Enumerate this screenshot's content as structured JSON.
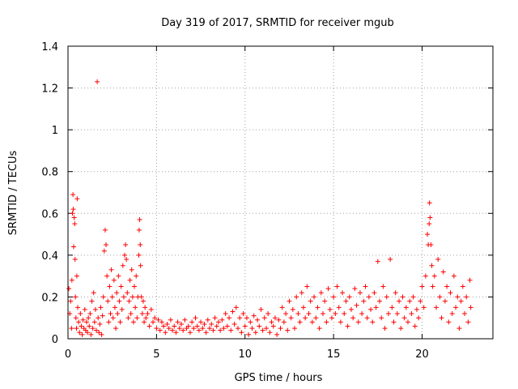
{
  "chart_data": {
    "type": "scatter",
    "title": "Day 319 of 2017, SRMTID for receiver mgub",
    "xlabel": "GPS time / hours",
    "ylabel": "SRMTID / TECUs",
    "xlim": [
      0,
      24
    ],
    "ylim": [
      0,
      1.4
    ],
    "xticks": [
      0,
      5,
      10,
      15,
      20
    ],
    "yticks": [
      0,
      0.2,
      0.4,
      0.6,
      0.8,
      1,
      1.2,
      1.4
    ],
    "xtick_labels": [
      "0",
      "5",
      "10",
      "15",
      "20"
    ],
    "ytick_labels": [
      "0",
      "0.2",
      "0.4",
      "0.6",
      "0.8",
      "1",
      "1.2",
      "1.4"
    ],
    "grid": true,
    "marker": "+",
    "color": "#ff0000",
    "series": [
      {
        "name": "SRMTID",
        "points": [
          [
            0.05,
            0.24
          ],
          [
            0.1,
            0.12
          ],
          [
            0.15,
            0.18
          ],
          [
            0.2,
            0.05
          ],
          [
            0.22,
            0.28
          ],
          [
            0.25,
            0.6
          ],
          [
            0.28,
            0.69
          ],
          [
            0.3,
            0.62
          ],
          [
            0.32,
            0.44
          ],
          [
            0.35,
            0.58
          ],
          [
            0.38,
            0.55
          ],
          [
            0.4,
            0.38
          ],
          [
            0.42,
            0.2
          ],
          [
            0.45,
            0.1
          ],
          [
            0.48,
            0.05
          ],
          [
            0.5,
            0.3
          ],
          [
            0.52,
            0.67
          ],
          [
            0.55,
            0.15
          ],
          [
            0.6,
            0.08
          ],
          [
            0.65,
            0.03
          ],
          [
            0.7,
            0.12
          ],
          [
            0.75,
            0.06
          ],
          [
            0.8,
            0.02
          ],
          [
            0.85,
            0.09
          ],
          [
            0.9,
            0.05
          ],
          [
            0.95,
            0.14
          ],
          [
            1.0,
            0.04
          ],
          [
            1.05,
            0.08
          ],
          [
            1.1,
            0.03
          ],
          [
            1.15,
            0.1
          ],
          [
            1.2,
            0.06
          ],
          [
            1.25,
            0.12
          ],
          [
            1.3,
            0.02
          ],
          [
            1.35,
            0.18
          ],
          [
            1.4,
            0.05
          ],
          [
            1.45,
            0.22
          ],
          [
            1.5,
            0.08
          ],
          [
            1.55,
            0.14
          ],
          [
            1.6,
            0.04
          ],
          [
            1.65,
            1.23
          ],
          [
            1.7,
            0.1
          ],
          [
            1.75,
            0.03
          ],
          [
            1.8,
            0.07
          ],
          [
            1.85,
            0.15
          ],
          [
            1.9,
            0.02
          ],
          [
            1.95,
            0.11
          ],
          [
            2.0,
            0.2
          ],
          [
            2.05,
            0.42
          ],
          [
            2.1,
            0.52
          ],
          [
            2.15,
            0.45
          ],
          [
            2.2,
            0.3
          ],
          [
            2.25,
            0.18
          ],
          [
            2.3,
            0.08
          ],
          [
            2.35,
            0.25
          ],
          [
            2.4,
            0.12
          ],
          [
            2.45,
            0.33
          ],
          [
            2.5,
            0.2
          ],
          [
            2.55,
            0.1
          ],
          [
            2.6,
            0.28
          ],
          [
            2.65,
            0.15
          ],
          [
            2.7,
            0.05
          ],
          [
            2.75,
            0.22
          ],
          [
            2.8,
            0.12
          ],
          [
            2.85,
            0.3
          ],
          [
            2.9,
            0.18
          ],
          [
            2.95,
            0.08
          ],
          [
            3.0,
            0.25
          ],
          [
            3.05,
            0.14
          ],
          [
            3.1,
            0.35
          ],
          [
            3.15,
            0.2
          ],
          [
            3.2,
            0.4
          ],
          [
            3.25,
            0.45
          ],
          [
            3.3,
            0.38
          ],
          [
            3.35,
            0.22
          ],
          [
            3.4,
            0.1
          ],
          [
            3.45,
            0.18
          ],
          [
            3.5,
            0.28
          ],
          [
            3.55,
            0.12
          ],
          [
            3.6,
            0.33
          ],
          [
            3.65,
            0.2
          ],
          [
            3.7,
            0.08
          ],
          [
            3.75,
            0.25
          ],
          [
            3.8,
            0.15
          ],
          [
            3.85,
            0.3
          ],
          [
            3.9,
            0.1
          ],
          [
            3.95,
            0.2
          ],
          [
            4.0,
            0.4
          ],
          [
            4.02,
            0.52
          ],
          [
            4.05,
            0.57
          ],
          [
            4.08,
            0.45
          ],
          [
            4.1,
            0.35
          ],
          [
            4.15,
            0.2
          ],
          [
            4.2,
            0.12
          ],
          [
            4.25,
            0.18
          ],
          [
            4.3,
            0.08
          ],
          [
            4.35,
            0.15
          ],
          [
            4.4,
            0.1
          ],
          [
            4.5,
            0.12
          ],
          [
            4.6,
            0.06
          ],
          [
            4.7,
            0.14
          ],
          [
            4.8,
            0.08
          ],
          [
            4.9,
            0.1
          ],
          [
            5.0,
            0.05
          ],
          [
            5.1,
            0.09
          ],
          [
            5.2,
            0.04
          ],
          [
            5.3,
            0.08
          ],
          [
            5.4,
            0.06
          ],
          [
            5.5,
            0.03
          ],
          [
            5.6,
            0.07
          ],
          [
            5.7,
            0.05
          ],
          [
            5.8,
            0.09
          ],
          [
            5.9,
            0.04
          ],
          [
            6.0,
            0.06
          ],
          [
            6.1,
            0.03
          ],
          [
            6.2,
            0.08
          ],
          [
            6.3,
            0.05
          ],
          [
            6.4,
            0.07
          ],
          [
            6.5,
            0.04
          ],
          [
            6.6,
            0.09
          ],
          [
            6.7,
            0.05
          ],
          [
            6.8,
            0.06
          ],
          [
            6.9,
            0.03
          ],
          [
            7.0,
            0.08
          ],
          [
            7.1,
            0.05
          ],
          [
            7.2,
            0.1
          ],
          [
            7.3,
            0.06
          ],
          [
            7.4,
            0.04
          ],
          [
            7.5,
            0.08
          ],
          [
            7.6,
            0.05
          ],
          [
            7.7,
            0.07
          ],
          [
            7.8,
            0.03
          ],
          [
            7.9,
            0.09
          ],
          [
            8.0,
            0.05
          ],
          [
            8.1,
            0.07
          ],
          [
            8.2,
            0.04
          ],
          [
            8.3,
            0.1
          ],
          [
            8.4,
            0.06
          ],
          [
            8.5,
            0.08
          ],
          [
            8.6,
            0.04
          ],
          [
            8.7,
            0.09
          ],
          [
            8.8,
            0.05
          ],
          [
            8.9,
            0.12
          ],
          [
            9.0,
            0.06
          ],
          [
            9.1,
            0.1
          ],
          [
            9.2,
            0.04
          ],
          [
            9.3,
            0.13
          ],
          [
            9.4,
            0.07
          ],
          [
            9.5,
            0.15
          ],
          [
            9.6,
            0.05
          ],
          [
            9.7,
            0.1
          ],
          [
            9.8,
            0.03
          ],
          [
            9.9,
            0.12
          ],
          [
            10.0,
            0.06
          ],
          [
            10.1,
            0.1
          ],
          [
            10.2,
            0.02
          ],
          [
            10.3,
            0.08
          ],
          [
            10.4,
            0.05
          ],
          [
            10.5,
            0.11
          ],
          [
            10.6,
            0.03
          ],
          [
            10.7,
            0.09
          ],
          [
            10.8,
            0.06
          ],
          [
            10.9,
            0.14
          ],
          [
            11.0,
            0.04
          ],
          [
            11.1,
            0.1
          ],
          [
            11.2,
            0.05
          ],
          [
            11.3,
            0.12
          ],
          [
            11.4,
            0.03
          ],
          [
            11.5,
            0.08
          ],
          [
            11.6,
            0.06
          ],
          [
            11.7,
            0.1
          ],
          [
            11.8,
            0.02
          ],
          [
            11.9,
            0.09
          ],
          [
            12.0,
            0.05
          ],
          [
            12.1,
            0.15
          ],
          [
            12.2,
            0.08
          ],
          [
            12.3,
            0.12
          ],
          [
            12.4,
            0.04
          ],
          [
            12.5,
            0.18
          ],
          [
            12.6,
            0.1
          ],
          [
            12.7,
            0.14
          ],
          [
            12.8,
            0.05
          ],
          [
            12.9,
            0.2
          ],
          [
            13.0,
            0.12
          ],
          [
            13.1,
            0.08
          ],
          [
            13.2,
            0.22
          ],
          [
            13.3,
            0.15
          ],
          [
            13.4,
            0.1
          ],
          [
            13.5,
            0.25
          ],
          [
            13.6,
            0.12
          ],
          [
            13.7,
            0.18
          ],
          [
            13.8,
            0.08
          ],
          [
            13.9,
            0.2
          ],
          [
            14.0,
            0.1
          ],
          [
            14.1,
            0.15
          ],
          [
            14.2,
            0.05
          ],
          [
            14.3,
            0.22
          ],
          [
            14.4,
            0.12
          ],
          [
            14.5,
            0.18
          ],
          [
            14.6,
            0.08
          ],
          [
            14.7,
            0.24
          ],
          [
            14.8,
            0.14
          ],
          [
            14.9,
            0.1
          ],
          [
            15.0,
            0.2
          ],
          [
            15.1,
            0.12
          ],
          [
            15.2,
            0.25
          ],
          [
            15.3,
            0.15
          ],
          [
            15.4,
            0.08
          ],
          [
            15.5,
            0.22
          ],
          [
            15.6,
            0.12
          ],
          [
            15.7,
            0.18
          ],
          [
            15.8,
            0.06
          ],
          [
            15.9,
            0.2
          ],
          [
            16.0,
            0.14
          ],
          [
            16.1,
            0.1
          ],
          [
            16.2,
            0.24
          ],
          [
            16.3,
            0.16
          ],
          [
            16.4,
            0.08
          ],
          [
            16.5,
            0.22
          ],
          [
            16.6,
            0.12
          ],
          [
            16.7,
            0.18
          ],
          [
            16.8,
            0.25
          ],
          [
            16.9,
            0.1
          ],
          [
            17.0,
            0.2
          ],
          [
            17.1,
            0.14
          ],
          [
            17.2,
            0.08
          ],
          [
            17.3,
            0.22
          ],
          [
            17.4,
            0.15
          ],
          [
            17.5,
            0.37
          ],
          [
            17.6,
            0.18
          ],
          [
            17.7,
            0.1
          ],
          [
            17.8,
            0.25
          ],
          [
            17.9,
            0.05
          ],
          [
            18.0,
            0.2
          ],
          [
            18.1,
            0.12
          ],
          [
            18.2,
            0.38
          ],
          [
            18.3,
            0.15
          ],
          [
            18.4,
            0.08
          ],
          [
            18.5,
            0.22
          ],
          [
            18.6,
            0.12
          ],
          [
            18.7,
            0.18
          ],
          [
            18.8,
            0.05
          ],
          [
            18.9,
            0.2
          ],
          [
            19.0,
            0.1
          ],
          [
            19.1,
            0.15
          ],
          [
            19.2,
            0.08
          ],
          [
            19.3,
            0.18
          ],
          [
            19.4,
            0.12
          ],
          [
            19.5,
            0.2
          ],
          [
            19.6,
            0.06
          ],
          [
            19.7,
            0.14
          ],
          [
            19.8,
            0.1
          ],
          [
            19.9,
            0.18
          ],
          [
            20.0,
            0.25
          ],
          [
            20.1,
            0.15
          ],
          [
            20.2,
            0.3
          ],
          [
            20.3,
            0.5
          ],
          [
            20.35,
            0.45
          ],
          [
            20.4,
            0.55
          ],
          [
            20.42,
            0.65
          ],
          [
            20.45,
            0.58
          ],
          [
            20.5,
            0.45
          ],
          [
            20.55,
            0.35
          ],
          [
            20.6,
            0.25
          ],
          [
            20.7,
            0.3
          ],
          [
            20.8,
            0.15
          ],
          [
            20.9,
            0.38
          ],
          [
            21.0,
            0.2
          ],
          [
            21.1,
            0.1
          ],
          [
            21.2,
            0.32
          ],
          [
            21.3,
            0.18
          ],
          [
            21.4,
            0.25
          ],
          [
            21.5,
            0.08
          ],
          [
            21.6,
            0.22
          ],
          [
            21.7,
            0.12
          ],
          [
            21.8,
            0.3
          ],
          [
            21.9,
            0.15
          ],
          [
            22.0,
            0.2
          ],
          [
            22.1,
            0.05
          ],
          [
            22.2,
            0.18
          ],
          [
            22.3,
            0.25
          ],
          [
            22.4,
            0.12
          ],
          [
            22.5,
            0.2
          ],
          [
            22.6,
            0.08
          ],
          [
            22.7,
            0.28
          ],
          [
            22.75,
            0.15
          ]
        ]
      }
    ]
  }
}
